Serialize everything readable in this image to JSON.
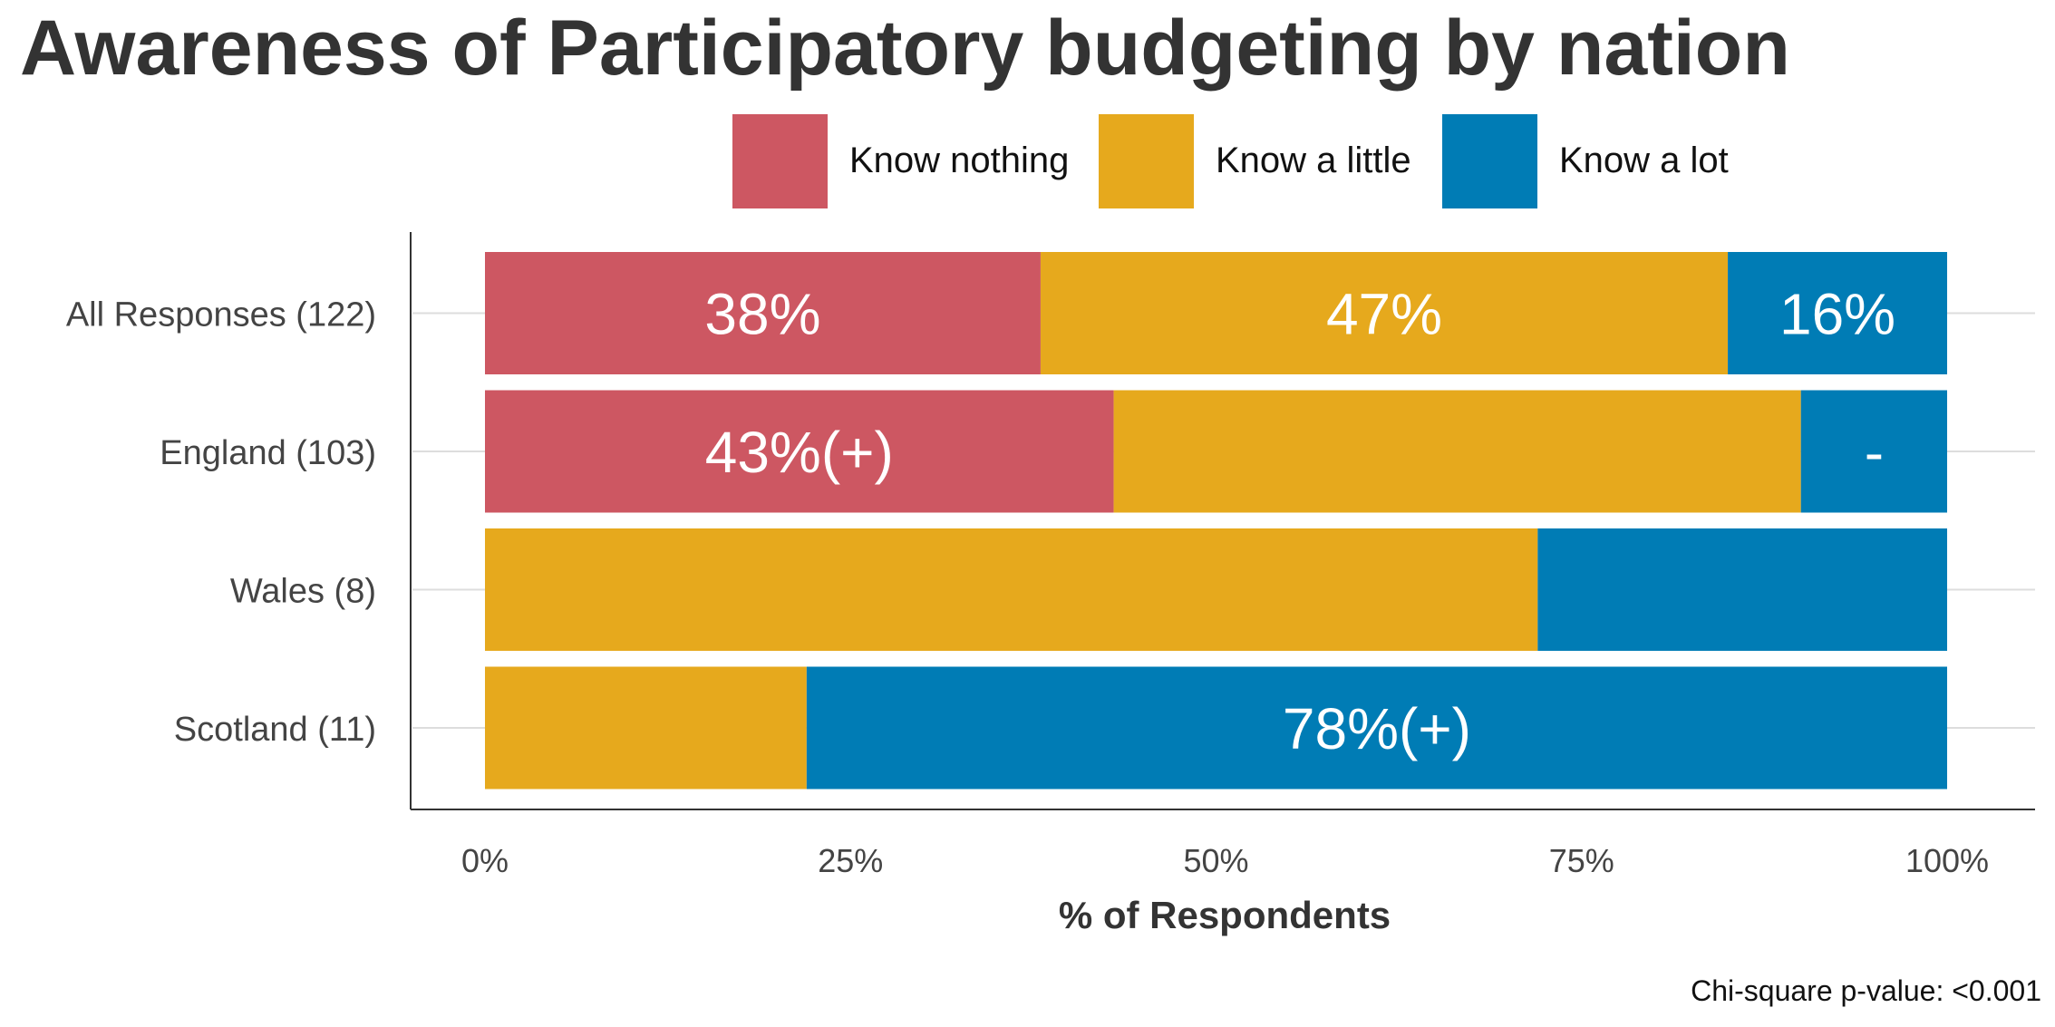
{
  "chart_data": {
    "type": "bar",
    "orientation": "horizontal",
    "stacked": true,
    "title": "Awareness of Participatory budgeting by nation",
    "xlabel": "% of Respondents",
    "ylabel": "",
    "xlim": [
      0,
      100
    ],
    "x_ticks": [
      "0%",
      "25%",
      "50%",
      "75%",
      "100%"
    ],
    "grid": "horizontal",
    "legend_position": "top",
    "categories": [
      "All Responses (122)",
      "England (103)",
      "Wales (8)",
      "Scotland (11)"
    ],
    "series": [
      {
        "name": "Know nothing",
        "color": "#cd5762",
        "values": [
          38,
          43,
          0,
          0
        ],
        "labels": [
          "38%",
          "43%(+)",
          "",
          ""
        ]
      },
      {
        "name": "Know a little",
        "color": "#e6a91d",
        "values": [
          47,
          47,
          72,
          22
        ],
        "labels": [
          "47%",
          "",
          "",
          ""
        ]
      },
      {
        "name": "Know a lot",
        "color": "#007cb5",
        "values": [
          16,
          10,
          28,
          78
        ],
        "labels": [
          "16%",
          "-",
          "",
          "78%(+)"
        ]
      }
    ],
    "footnote": "Chi-square p-value: <0.001"
  }
}
